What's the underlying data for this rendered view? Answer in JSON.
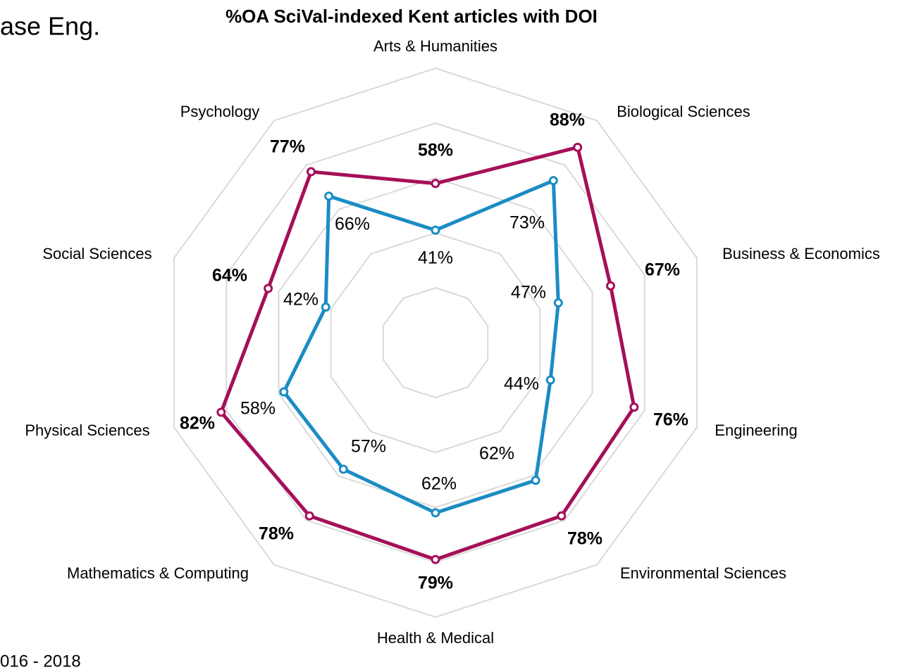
{
  "annotations": [
    "ase Eng.",
    "016 - 2018"
  ],
  "chart_data": {
    "type": "radar",
    "title": "%OA  SciVal-indexed Kent articles with DOI",
    "categories": [
      "Arts & Humanities",
      "Biological Sciences",
      "Business & Economics",
      "Engineering",
      "Environmental Sciences",
      "Health & Medical",
      "Mathematics & Computing",
      "Physical Sciences",
      "Social Sciences",
      "Psychology"
    ],
    "rlim": [
      0,
      100
    ],
    "rticks": [
      20,
      40,
      60,
      80,
      100
    ],
    "grid": true,
    "series": [
      {
        "color": "#a50f5a",
        "values": [
          58,
          88,
          67,
          76,
          78,
          79,
          78,
          82,
          64,
          77
        ],
        "value_labels": [
          "58%",
          "88%",
          "67%",
          "76%",
          "78%",
          "79%",
          "78%",
          "82%",
          "64%",
          "77%"
        ]
      },
      {
        "color": "#1a8cc4",
        "values": [
          41,
          73,
          47,
          44,
          62,
          62,
          57,
          58,
          42,
          66
        ],
        "value_labels": [
          "41%",
          "73%",
          "47%",
          "44%",
          "62%",
          "62%",
          "57%",
          "58%",
          "42%",
          "66%"
        ]
      }
    ]
  }
}
